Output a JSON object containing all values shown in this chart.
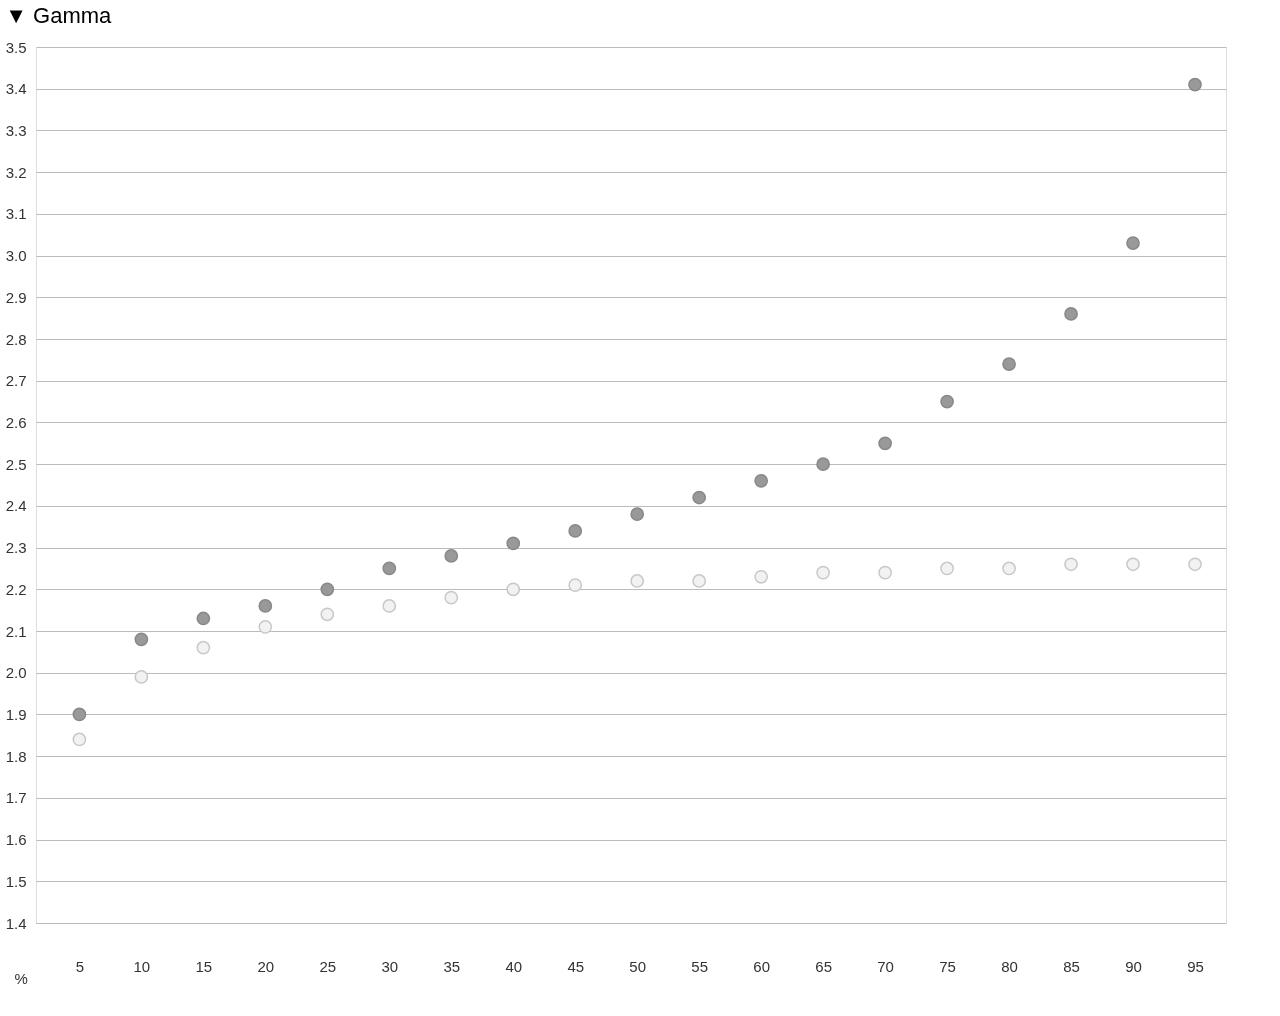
{
  "chart_data": {
    "type": "scatter",
    "title": "▼ Gamma",
    "xlabel": "%",
    "categories": [
      "5",
      "10",
      "15",
      "20",
      "25",
      "30",
      "35",
      "40",
      "45",
      "50",
      "55",
      "60",
      "65",
      "70",
      "75",
      "80",
      "85",
      "90",
      "95"
    ],
    "series": [
      {
        "color": "#999999",
        "values": [
          1.9,
          2.08,
          2.13,
          2.16,
          2.2,
          2.25,
          2.28,
          2.31,
          2.34,
          2.38,
          2.42,
          2.46,
          2.5,
          2.55,
          2.65,
          2.74,
          2.86,
          3.03,
          3.41
        ]
      },
      {
        "color": "#f2f2f2",
        "values": [
          1.84,
          1.99,
          2.06,
          2.11,
          2.14,
          2.16,
          2.18,
          2.2,
          2.21,
          2.22,
          2.22,
          2.23,
          2.24,
          2.24,
          2.25,
          2.25,
          2.26,
          2.26,
          2.26
        ]
      }
    ],
    "ylim": [
      1.4,
      3.5
    ],
    "yticks": [
      1.4,
      1.5,
      1.6,
      1.7,
      1.8,
      1.9,
      {
        "value": 2,
        "label": "2.0"
      },
      2.1,
      2.2,
      2.3,
      2.4,
      2.5,
      2.6,
      2.7,
      2.8,
      2.9,
      {
        "value": 3,
        "label": "3.0"
      },
      3.1,
      3.2,
      3.3,
      3.4,
      3.5
    ],
    "grid": "y",
    "marker": "circle"
  }
}
